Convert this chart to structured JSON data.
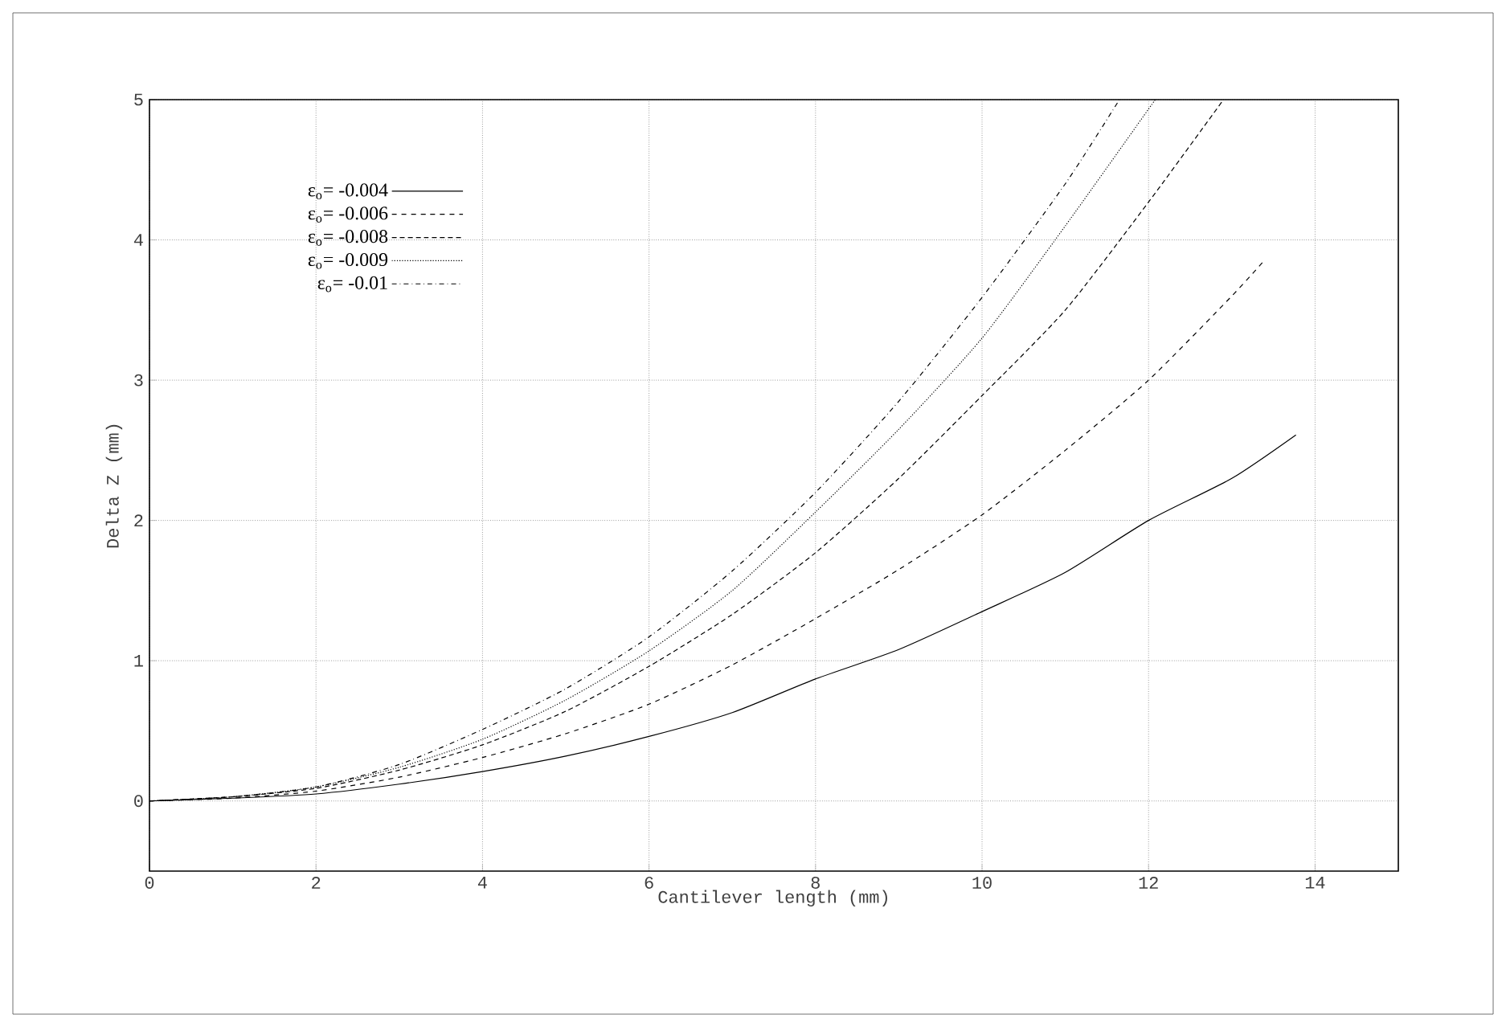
{
  "chart_data": {
    "type": "line",
    "xlabel": "Cantilever length (mm)",
    "ylabel": "Delta Z (mm)",
    "xlim": [
      0,
      15
    ],
    "ylim": [
      -0.5,
      5
    ],
    "xticks": [
      0,
      2,
      4,
      6,
      8,
      10,
      12,
      14
    ],
    "yticks": [
      0,
      1,
      2,
      3,
      4,
      5
    ],
    "grid": true,
    "legend": "top left",
    "marker": "none",
    "series": [
      {
        "name": "ε$_{o}$= -0.004",
        "color": "#000000",
        "line_style": "solid",
        "x": [
          0,
          1,
          2,
          3,
          4,
          5,
          6,
          7,
          8,
          9,
          10,
          11,
          12,
          13,
          13.77
        ],
        "values": [
          0,
          0.02,
          0.05,
          0.12,
          0.21,
          0.32,
          0.46,
          0.63,
          0.87,
          1.08,
          1.35,
          1.63,
          2.0,
          2.3,
          2.61
        ]
      },
      {
        "name": "ε$_{o}$= -0.006",
        "color": "#000000",
        "line_style": "dashed",
        "x": [
          0,
          1,
          2,
          3,
          4,
          5,
          6,
          7,
          8,
          9,
          10,
          11,
          12,
          13,
          13.4
        ],
        "values": [
          0,
          0.02,
          0.07,
          0.17,
          0.31,
          0.48,
          0.69,
          0.97,
          1.3,
          1.65,
          2.04,
          2.5,
          3.0,
          3.6,
          3.86
        ]
      },
      {
        "name": "ε$_{o}$= -0.008",
        "color": "#000000",
        "line_style": "densely dashed",
        "x": [
          0,
          1,
          2,
          3,
          4,
          5,
          6,
          7,
          8,
          9,
          10,
          11,
          12,
          12.9
        ],
        "values": [
          0,
          0.03,
          0.09,
          0.22,
          0.4,
          0.64,
          0.96,
          1.33,
          1.77,
          2.3,
          2.89,
          3.5,
          4.27,
          5.0
        ]
      },
      {
        "name": "ε$_{o}$= -0.009",
        "color": "#000000",
        "line_style": "dotted",
        "x": [
          0,
          1,
          2,
          3,
          4,
          5,
          6,
          7,
          8,
          9,
          10,
          11,
          12.08
        ],
        "values": [
          0,
          0.03,
          0.1,
          0.24,
          0.44,
          0.72,
          1.07,
          1.5,
          2.06,
          2.65,
          3.3,
          4.1,
          5.0
        ]
      },
      {
        "name": "ε$_{o}$= -0.01",
        "color": "#000000",
        "line_style": "dash dot",
        "x": [
          0,
          1,
          2,
          3,
          4,
          5,
          6,
          7,
          8,
          9,
          10,
          11,
          11.65
        ],
        "values": [
          0,
          0.03,
          0.1,
          0.26,
          0.51,
          0.8,
          1.17,
          1.64,
          2.2,
          2.85,
          3.59,
          4.4,
          5.0
        ]
      }
    ]
  }
}
